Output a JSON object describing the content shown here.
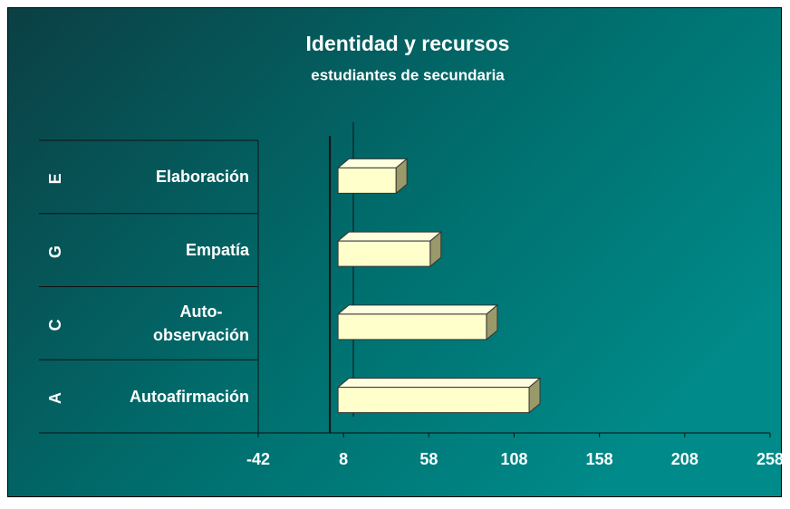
{
  "chart_data": {
    "type": "bar",
    "orientation": "horizontal",
    "title": "Identidad y recursos",
    "subtitle": "estudiantes de secundaria",
    "groups": [
      "A",
      "C",
      "G",
      "E"
    ],
    "categories": [
      "Autoafirmación",
      "Auto-observación",
      "Empatía",
      "Elaboración"
    ],
    "values": [
      112,
      87,
      54,
      34
    ],
    "color": "#ffffcc",
    "xlim": [
      -42,
      258
    ],
    "xticks": [
      -42,
      8,
      58,
      108,
      158,
      208,
      258
    ]
  }
}
